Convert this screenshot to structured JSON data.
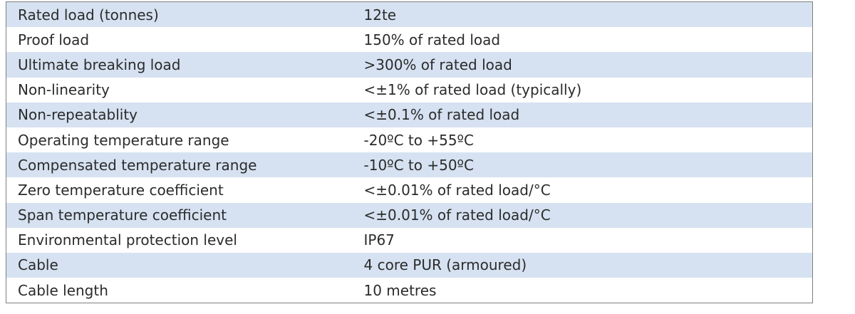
{
  "table": {
    "rows": [
      [
        "Rated load (tonnes)",
        "12te"
      ],
      [
        "Proof load",
        "150% of rated load"
      ],
      [
        "Ultimate breaking load",
        ">300% of rated load"
      ],
      [
        "Non-linearity",
        "<±1% of rated load (typically)"
      ],
      [
        "Non-repeatablity",
        "<±0.1% of rated load"
      ],
      [
        "Operating temperature range",
        "-20ºC to +55ºC"
      ],
      [
        "Compensated temperature range",
        "-10ºC to +50ºC"
      ],
      [
        "Zero temperature coefficient",
        "<±0.01% of rated load/°C"
      ],
      [
        "Span temperature coefficient",
        "<±0.01% of rated load/°C"
      ],
      [
        "Environmental protection level",
        "IP67"
      ],
      [
        "Cable",
        "4 core PUR (armoured)"
      ],
      [
        "Cable length",
        "10 metres"
      ]
    ]
  }
}
